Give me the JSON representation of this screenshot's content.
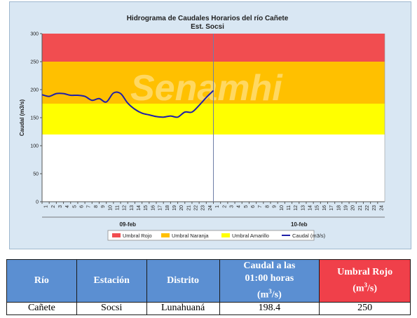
{
  "chart_data": {
    "type": "line",
    "title": "Hidrograma de Caudales Horarios del río Cañete",
    "subtitle": "Est. Socsi",
    "ylabel": "Caudal  (m3/s)",
    "ylim": [
      0,
      300
    ],
    "yticks": [
      0,
      50,
      100,
      150,
      200,
      250,
      300
    ],
    "xticks": [
      "1",
      "2",
      "3",
      "4",
      "5",
      "6",
      "7",
      "8",
      "9",
      "10",
      "11",
      "12",
      "13",
      "14",
      "15",
      "16",
      "17",
      "18",
      "19",
      "20",
      "21",
      "22",
      "23",
      "24",
      "1",
      "2",
      "3",
      "4",
      "5",
      "6",
      "7",
      "8",
      "9",
      "10",
      "11",
      "12",
      "13",
      "14",
      "15",
      "16",
      "17",
      "18",
      "19",
      "20",
      "21",
      "22",
      "23",
      "24"
    ],
    "day_labels": [
      "09-feb",
      "10-feb"
    ],
    "watermark": "Senamhi",
    "thresholds": [
      {
        "name": "Umbral Rojo",
        "from": 250,
        "to": 300,
        "color": "#f14d50"
      },
      {
        "name": "Umbral Naranja",
        "from": 175,
        "to": 250,
        "color": "#ffc000"
      },
      {
        "name": "Umbral Amarillo",
        "from": 120,
        "to": 175,
        "color": "#ffff00"
      }
    ],
    "series": [
      {
        "name": "Caudal (m3/s)",
        "color": "#1f1fa8",
        "x": [
          1,
          2,
          3,
          4,
          5,
          6,
          7,
          8,
          9,
          10,
          11,
          12,
          13,
          14,
          15,
          16,
          17,
          18,
          19,
          20,
          21,
          22,
          23,
          24,
          25
        ],
        "values": [
          191,
          188,
          193,
          193,
          190,
          190,
          188,
          181,
          184,
          178,
          194,
          193,
          176,
          165,
          158,
          155,
          152,
          151,
          153,
          151,
          160,
          160,
          172,
          186,
          198.4
        ]
      }
    ],
    "legend": [
      "Umbral Rojo",
      "Umbral Naranja",
      "Umbral Amarillo",
      "Caudal (m3/s)"
    ],
    "legend_position": "bottom",
    "grid": false
  },
  "table": {
    "headers": [
      {
        "key": "rio",
        "label": "Río"
      },
      {
        "key": "estacion",
        "label": "Estación"
      },
      {
        "key": "distrito",
        "label": "Distrito"
      },
      {
        "key": "caudal_line1",
        "label": "Caudal a las"
      },
      {
        "key": "caudal_line2",
        "label": "01:00 horas"
      },
      {
        "key": "caudal_unit",
        "label": "(m"
      },
      {
        "key": "unit_sup",
        "label": "3"
      },
      {
        "key": "unit_end",
        "label": "/s)"
      },
      {
        "key": "umbral_line1",
        "label": "Umbral Rojo"
      },
      {
        "key": "umbral_unit",
        "label": "(m"
      },
      {
        "key": "umbral_sup",
        "label": "3"
      },
      {
        "key": "umbral_end",
        "label": "/s)"
      }
    ],
    "row": {
      "rio": "Cañete",
      "estacion": "Socsi",
      "distrito": "Lunahuaná",
      "caudal": "198.4",
      "umbral": "250"
    }
  }
}
